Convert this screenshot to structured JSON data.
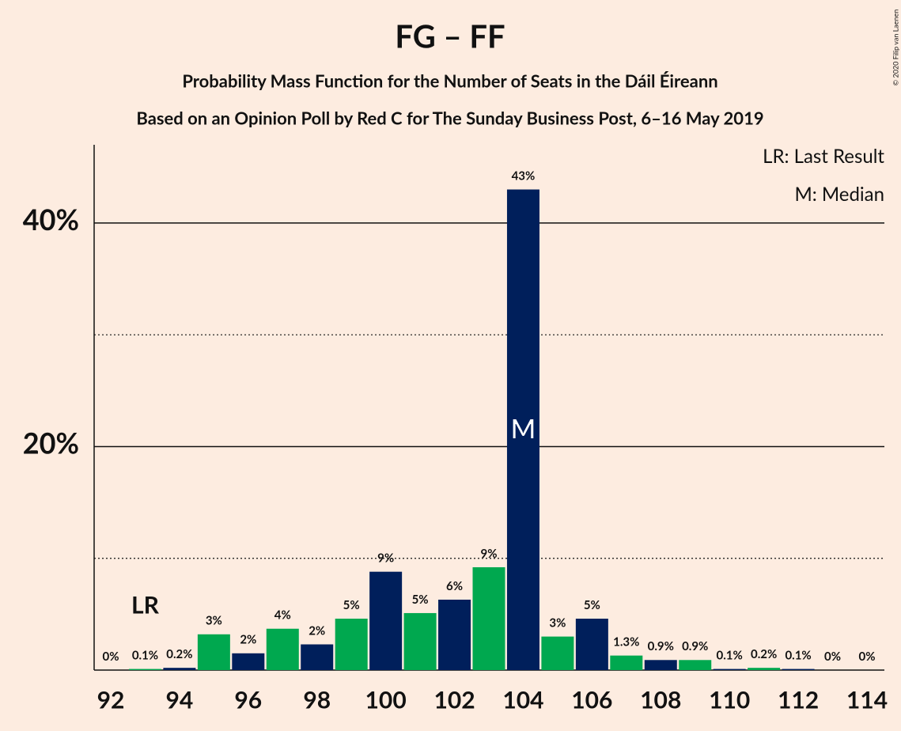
{
  "chart_data": {
    "type": "bar",
    "title": "FG – FF",
    "subtitle": "Probability Mass Function for the Number of Seats in the Dáil Éireann",
    "subtitle2": "Based on an Opinion Poll by Red C for The Sunday Business Post, 6–16 May 2019",
    "copyright": "© 2020 Filip van Laenen",
    "categories": [
      92,
      null,
      94,
      null,
      96,
      null,
      98,
      null,
      100,
      null,
      102,
      null,
      104,
      null,
      106,
      null,
      108,
      null,
      110,
      null,
      112,
      null,
      114
    ],
    "values": [
      0,
      0.1,
      0.2,
      3.2,
      1.5,
      3.7,
      2.3,
      4.6,
      8.8,
      5.1,
      6.3,
      9.2,
      43,
      3.0,
      4.6,
      1.3,
      0.9,
      0.9,
      0.1,
      0.2,
      0.1,
      0,
      0
    ],
    "value_labels": [
      "0%",
      "0.1%",
      "0.2%",
      "3%",
      "2%",
      "4%",
      "2%",
      "5%",
      "9%",
      "5%",
      "6%",
      "9%",
      "43%",
      "3%",
      "5%",
      "1.3%",
      "0.9%",
      "0.9%",
      "0.1%",
      "0.2%",
      "0.1%",
      "0%",
      "0%"
    ],
    "colors": [
      "#00a84f",
      "#00a84f",
      "#001f5b",
      "#00a84f",
      "#001f5b",
      "#00a84f",
      "#001f5b",
      "#00a84f",
      "#001f5b",
      "#00a84f",
      "#001f5b",
      "#00a84f",
      "#001f5b",
      "#00a84f",
      "#001f5b",
      "#00a84f",
      "#001f5b",
      "#00a84f",
      "#001f5b",
      "#00a84f",
      "#001f5b",
      "#00a84f",
      "#001f5b"
    ],
    "ylim": [
      0,
      47
    ],
    "yticks": [
      {
        "value": 20,
        "label": "20%"
      },
      {
        "value": 40,
        "label": "40%"
      }
    ],
    "minor_grid": [
      10,
      30
    ],
    "last_result_index": 1,
    "last_result_label": "LR",
    "median_index": 12,
    "median_label": "M",
    "legend": [
      "LR: Last Result",
      "M: Median"
    ]
  }
}
